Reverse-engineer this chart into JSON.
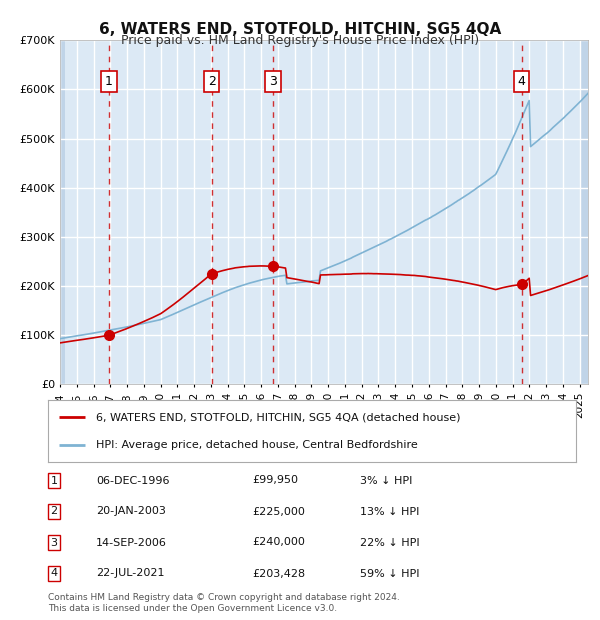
{
  "title": "6, WATERS END, STOTFOLD, HITCHIN, SG5 4QA",
  "subtitle": "Price paid vs. HM Land Registry's House Price Index (HPI)",
  "ylabel": "",
  "ylim": [
    0,
    700000
  ],
  "yticks": [
    0,
    100000,
    200000,
    300000,
    400000,
    500000,
    600000,
    700000
  ],
  "ytick_labels": [
    "£0",
    "£100K",
    "£200K",
    "£300K",
    "£400K",
    "£500K",
    "£600K",
    "£700K"
  ],
  "xlim_start": 1994.0,
  "xlim_end": 2025.5,
  "background_color": "#dce9f5",
  "hatch_color": "#c0d4e8",
  "grid_color": "#ffffff",
  "sale_color": "#cc0000",
  "hpi_color": "#7fb3d3",
  "sale_dot_color": "#cc0000",
  "vline_color": "#cc0000",
  "purchases": [
    {
      "label": "1",
      "date_year": 1996.92,
      "price": 99950
    },
    {
      "label": "2",
      "date_year": 2003.05,
      "price": 225000
    },
    {
      "label": "3",
      "date_year": 2006.71,
      "price": 240000
    },
    {
      "label": "4",
      "date_year": 2021.55,
      "price": 203428
    }
  ],
  "legend_property_label": "6, WATERS END, STOTFOLD, HITCHIN, SG5 4QA (detached house)",
  "legend_hpi_label": "HPI: Average price, detached house, Central Bedfordshire",
  "table_rows": [
    [
      "1",
      "06-DEC-1996",
      "£99,950",
      "3% ↓ HPI"
    ],
    [
      "2",
      "20-JAN-2003",
      "£225,000",
      "13% ↓ HPI"
    ],
    [
      "3",
      "14-SEP-2006",
      "£240,000",
      "22% ↓ HPI"
    ],
    [
      "4",
      "22-JUL-2021",
      "£203,428",
      "59% ↓ HPI"
    ]
  ],
  "footer": "Contains HM Land Registry data © Crown copyright and database right 2024.\nThis data is licensed under the Open Government Licence v3.0."
}
